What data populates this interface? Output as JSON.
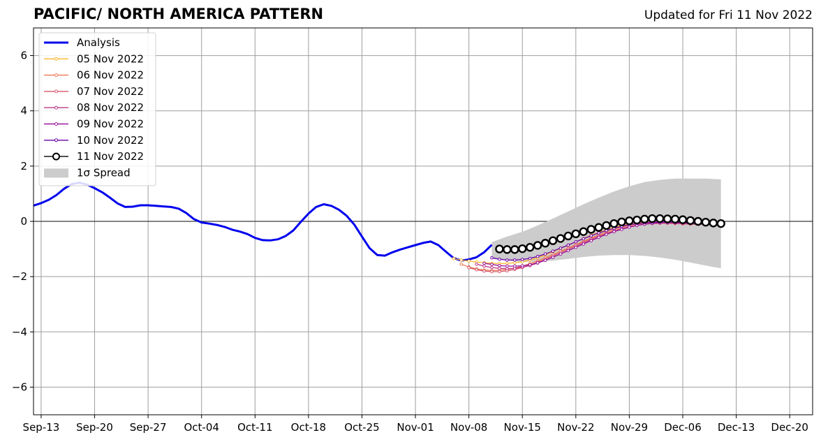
{
  "chart_data": {
    "type": "line",
    "title": "PACIFIC/ NORTH AMERICA PATTERN",
    "subtitle": "Updated for Fri 11 Nov 2022",
    "xlabel": "",
    "ylabel": "",
    "x_ticks": [
      "Sep-13",
      "Sep-20",
      "Sep-27",
      "Oct-04",
      "Oct-11",
      "Oct-18",
      "Oct-25",
      "Nov-01",
      "Nov-08",
      "Nov-15",
      "Nov-22",
      "Nov-29",
      "Dec-06",
      "Dec-13",
      "Dec-20"
    ],
    "y_ticks": [
      "−6",
      "−4",
      "−2",
      "0",
      "2",
      "4",
      "6"
    ],
    "xlim": [
      "2022-09-12",
      "2022-12-23"
    ],
    "ylim": [
      -7,
      7
    ],
    "grid": true,
    "legend_position": "upper left",
    "series": [
      {
        "name": "Analysis",
        "color": "#0000ee",
        "x": [
          "2022-09-12",
          "2022-09-13",
          "2022-09-14",
          "2022-09-15",
          "2022-09-16",
          "2022-09-17",
          "2022-09-18",
          "2022-09-19",
          "2022-09-20",
          "2022-09-21",
          "2022-09-22",
          "2022-09-23",
          "2022-09-24",
          "2022-09-25",
          "2022-09-26",
          "2022-09-27",
          "2022-09-28",
          "2022-09-29",
          "2022-09-30",
          "2022-10-01",
          "2022-10-02",
          "2022-10-03",
          "2022-10-04",
          "2022-10-05",
          "2022-10-06",
          "2022-10-07",
          "2022-10-08",
          "2022-10-09",
          "2022-10-10",
          "2022-10-11",
          "2022-10-12",
          "2022-10-13",
          "2022-10-14",
          "2022-10-15",
          "2022-10-16",
          "2022-10-17",
          "2022-10-18",
          "2022-10-19",
          "2022-10-20",
          "2022-10-21",
          "2022-10-22",
          "2022-10-23",
          "2022-10-24",
          "2022-10-25",
          "2022-10-26",
          "2022-10-27",
          "2022-10-28",
          "2022-10-29",
          "2022-10-30",
          "2022-10-31",
          "2022-11-01",
          "2022-11-02",
          "2022-11-03",
          "2022-11-04",
          "2022-11-05",
          "2022-11-06",
          "2022-11-07",
          "2022-11-08",
          "2022-11-09",
          "2022-11-10",
          "2022-11-11"
        ],
        "values": [
          0.57,
          0.66,
          0.78,
          0.95,
          1.18,
          1.35,
          1.4,
          1.33,
          1.2,
          1.05,
          0.86,
          0.65,
          0.52,
          0.53,
          0.58,
          0.58,
          0.56,
          0.54,
          0.52,
          0.46,
          0.3,
          0.08,
          -0.04,
          -0.08,
          -0.13,
          -0.2,
          -0.3,
          -0.37,
          -0.46,
          -0.6,
          -0.68,
          -0.69,
          -0.65,
          -0.53,
          -0.33,
          -0.02,
          0.28,
          0.52,
          0.62,
          0.56,
          0.42,
          0.2,
          -0.12,
          -0.55,
          -0.97,
          -1.22,
          -1.24,
          -1.12,
          -1.02,
          -0.94,
          -0.86,
          -0.78,
          -0.73,
          -0.86,
          -1.1,
          -1.33,
          -1.42,
          -1.38,
          -1.3,
          -1.12,
          -0.85
        ]
      },
      {
        "name": "05 Nov 2022",
        "color": "#fdb42f",
        "x": [
          "2022-11-06",
          "2022-11-07",
          "2022-11-08",
          "2022-11-09",
          "2022-11-10",
          "2022-11-11",
          "2022-11-12",
          "2022-11-13",
          "2022-11-14",
          "2022-11-15",
          "2022-11-16",
          "2022-11-17",
          "2022-11-18",
          "2022-11-19",
          "2022-11-20",
          "2022-11-21",
          "2022-11-22",
          "2022-11-23",
          "2022-11-24",
          "2022-11-25",
          "2022-11-26",
          "2022-11-27",
          "2022-11-28",
          "2022-11-29",
          "2022-11-30",
          "2022-12-01",
          "2022-12-02",
          "2022-12-03",
          "2022-12-04",
          "2022-12-05",
          "2022-12-06"
        ],
        "values": [
          -1.35,
          -1.4,
          -1.44,
          -1.47,
          -1.5,
          -1.52,
          -1.53,
          -1.52,
          -1.5,
          -1.46,
          -1.4,
          -1.32,
          -1.22,
          -1.1,
          -0.98,
          -0.86,
          -0.74,
          -0.62,
          -0.5,
          -0.4,
          -0.3,
          -0.22,
          -0.15,
          -0.1,
          -0.06,
          -0.03,
          -0.02,
          -0.02,
          -0.03,
          -0.05,
          -0.07
        ]
      },
      {
        "name": "06 Nov 2022",
        "color": "#ed7953",
        "x": [
          "2022-11-07",
          "2022-11-08",
          "2022-11-09",
          "2022-11-10",
          "2022-11-11",
          "2022-11-12",
          "2022-11-13",
          "2022-11-14",
          "2022-11-15",
          "2022-11-16",
          "2022-11-17",
          "2022-11-18",
          "2022-11-19",
          "2022-11-20",
          "2022-11-21",
          "2022-11-22",
          "2022-11-23",
          "2022-11-24",
          "2022-11-25",
          "2022-11-26",
          "2022-11-27",
          "2022-11-28",
          "2022-11-29",
          "2022-11-30",
          "2022-12-01",
          "2022-12-02",
          "2022-12-03",
          "2022-12-04",
          "2022-12-05",
          "2022-12-06",
          "2022-12-07"
        ],
        "values": [
          -1.55,
          -1.65,
          -1.72,
          -1.76,
          -1.78,
          -1.77,
          -1.74,
          -1.69,
          -1.62,
          -1.53,
          -1.43,
          -1.32,
          -1.2,
          -1.08,
          -0.96,
          -0.84,
          -0.72,
          -0.6,
          -0.49,
          -0.38,
          -0.29,
          -0.21,
          -0.15,
          -0.1,
          -0.07,
          -0.05,
          -0.05,
          -0.06,
          -0.07,
          -0.09,
          -0.1
        ]
      },
      {
        "name": "07 Nov 2022",
        "color": "#d8576b",
        "x": [
          "2022-11-08",
          "2022-11-09",
          "2022-11-10",
          "2022-11-11",
          "2022-11-12",
          "2022-11-13",
          "2022-11-14",
          "2022-11-15",
          "2022-11-16",
          "2022-11-17",
          "2022-11-18",
          "2022-11-19",
          "2022-11-20",
          "2022-11-21",
          "2022-11-22",
          "2022-11-23",
          "2022-11-24",
          "2022-11-25",
          "2022-11-26",
          "2022-11-27",
          "2022-11-28",
          "2022-11-29",
          "2022-11-30",
          "2022-12-01",
          "2022-12-02",
          "2022-12-03",
          "2022-12-04",
          "2022-12-05",
          "2022-12-06",
          "2022-12-07",
          "2022-12-08"
        ],
        "values": [
          -1.68,
          -1.75,
          -1.8,
          -1.82,
          -1.82,
          -1.79,
          -1.74,
          -1.67,
          -1.58,
          -1.48,
          -1.37,
          -1.25,
          -1.13,
          -1.0,
          -0.88,
          -0.76,
          -0.64,
          -0.53,
          -0.43,
          -0.34,
          -0.26,
          -0.19,
          -0.14,
          -0.1,
          -0.08,
          -0.07,
          -0.07,
          -0.08,
          -0.09,
          -0.1,
          -0.11
        ]
      },
      {
        "name": "08 Nov 2022",
        "color": "#bd3786",
        "x": [
          "2022-11-09",
          "2022-11-10",
          "2022-11-11",
          "2022-11-12",
          "2022-11-13",
          "2022-11-14",
          "2022-11-15",
          "2022-11-16",
          "2022-11-17",
          "2022-11-18",
          "2022-11-19",
          "2022-11-20",
          "2022-11-21",
          "2022-11-22",
          "2022-11-23",
          "2022-11-24",
          "2022-11-25",
          "2022-11-26",
          "2022-11-27",
          "2022-11-28",
          "2022-11-29",
          "2022-11-30",
          "2022-12-01",
          "2022-12-02",
          "2022-12-03",
          "2022-12-04",
          "2022-12-05",
          "2022-12-06",
          "2022-12-07",
          "2022-12-08",
          "2022-12-09"
        ],
        "values": [
          -1.55,
          -1.62,
          -1.67,
          -1.7,
          -1.71,
          -1.7,
          -1.66,
          -1.6,
          -1.51,
          -1.41,
          -1.3,
          -1.18,
          -1.05,
          -0.93,
          -0.8,
          -0.68,
          -0.57,
          -0.46,
          -0.37,
          -0.28,
          -0.21,
          -0.15,
          -0.1,
          -0.07,
          -0.05,
          -0.05,
          -0.06,
          -0.07,
          -0.08,
          -0.1,
          -0.11
        ]
      },
      {
        "name": "09 Nov 2022",
        "color": "#9c179e",
        "x": [
          "2022-11-10",
          "2022-11-11",
          "2022-11-12",
          "2022-11-13",
          "2022-11-14",
          "2022-11-15",
          "2022-11-16",
          "2022-11-17",
          "2022-11-18",
          "2022-11-19",
          "2022-11-20",
          "2022-11-21",
          "2022-11-22",
          "2022-11-23",
          "2022-11-24",
          "2022-11-25",
          "2022-11-26",
          "2022-11-27",
          "2022-11-28",
          "2022-11-29",
          "2022-11-30",
          "2022-12-01",
          "2022-12-02",
          "2022-12-03",
          "2022-12-04",
          "2022-12-05",
          "2022-12-06",
          "2022-12-07",
          "2022-12-08",
          "2022-12-09",
          "2022-12-10"
        ],
        "values": [
          -1.52,
          -1.56,
          -1.6,
          -1.62,
          -1.62,
          -1.61,
          -1.57,
          -1.5,
          -1.41,
          -1.3,
          -1.18,
          -1.06,
          -0.94,
          -0.82,
          -0.7,
          -0.58,
          -0.47,
          -0.37,
          -0.29,
          -0.21,
          -0.15,
          -0.1,
          -0.07,
          -0.05,
          -0.04,
          -0.05,
          -0.06,
          -0.07,
          -0.08,
          -0.1,
          -0.11
        ]
      },
      {
        "name": "10 Nov 2022",
        "color": "#6a00a8",
        "x": [
          "2022-11-11",
          "2022-11-12",
          "2022-11-13",
          "2022-11-14",
          "2022-11-15",
          "2022-11-16",
          "2022-11-17",
          "2022-11-18",
          "2022-11-19",
          "2022-11-20",
          "2022-11-21",
          "2022-11-22",
          "2022-11-23",
          "2022-11-24",
          "2022-11-25",
          "2022-11-26",
          "2022-11-27",
          "2022-11-28",
          "2022-11-29",
          "2022-11-30",
          "2022-12-01",
          "2022-12-02",
          "2022-12-03",
          "2022-12-04",
          "2022-12-05",
          "2022-12-06",
          "2022-12-07",
          "2022-12-08",
          "2022-12-09",
          "2022-12-10"
        ],
        "values": [
          -1.32,
          -1.37,
          -1.4,
          -1.4,
          -1.38,
          -1.34,
          -1.27,
          -1.18,
          -1.08,
          -0.97,
          -0.86,
          -0.74,
          -0.63,
          -0.52,
          -0.42,
          -0.33,
          -0.25,
          -0.18,
          -0.12,
          -0.08,
          -0.05,
          -0.03,
          -0.02,
          -0.02,
          -0.03,
          -0.04,
          -0.05,
          -0.06,
          -0.08,
          -0.1
        ]
      },
      {
        "name": "11 Nov 2022",
        "color": "#000000",
        "x": [
          "2022-11-12",
          "2022-11-13",
          "2022-11-14",
          "2022-11-15",
          "2022-11-16",
          "2022-11-17",
          "2022-11-18",
          "2022-11-19",
          "2022-11-20",
          "2022-11-21",
          "2022-11-22",
          "2022-11-23",
          "2022-11-24",
          "2022-11-25",
          "2022-11-26",
          "2022-11-27",
          "2022-11-28",
          "2022-11-29",
          "2022-11-30",
          "2022-12-01",
          "2022-12-02",
          "2022-12-03",
          "2022-12-04",
          "2022-12-05",
          "2022-12-06",
          "2022-12-07",
          "2022-12-08",
          "2022-12-09",
          "2022-12-10",
          "2022-12-11"
        ],
        "values": [
          -1.0,
          -1.02,
          -1.02,
          -0.99,
          -0.94,
          -0.87,
          -0.79,
          -0.7,
          -0.62,
          -0.53,
          -0.45,
          -0.37,
          -0.29,
          -0.22,
          -0.15,
          -0.08,
          -0.02,
          0.02,
          0.05,
          0.08,
          0.1,
          0.1,
          0.09,
          0.08,
          0.06,
          0.03,
          0.0,
          -0.03,
          -0.06,
          -0.08
        ]
      }
    ],
    "spread": {
      "name": "1σ Spread",
      "color": "#cccccc",
      "x": [
        "2022-11-11",
        "2022-11-13",
        "2022-11-15",
        "2022-11-17",
        "2022-11-19",
        "2022-11-21",
        "2022-11-23",
        "2022-11-25",
        "2022-11-27",
        "2022-11-29",
        "2022-12-01",
        "2022-12-03",
        "2022-12-05",
        "2022-12-07",
        "2022-12-09",
        "2022-12-11"
      ],
      "upper": [
        -0.75,
        -0.55,
        -0.38,
        -0.15,
        0.1,
        0.36,
        0.62,
        0.86,
        1.08,
        1.27,
        1.42,
        1.5,
        1.55,
        1.55,
        1.55,
        1.52
      ],
      "lower": [
        -1.35,
        -1.42,
        -1.47,
        -1.46,
        -1.42,
        -1.36,
        -1.29,
        -1.24,
        -1.22,
        -1.22,
        -1.25,
        -1.31,
        -1.39,
        -1.49,
        -1.6,
        -1.7
      ]
    }
  }
}
